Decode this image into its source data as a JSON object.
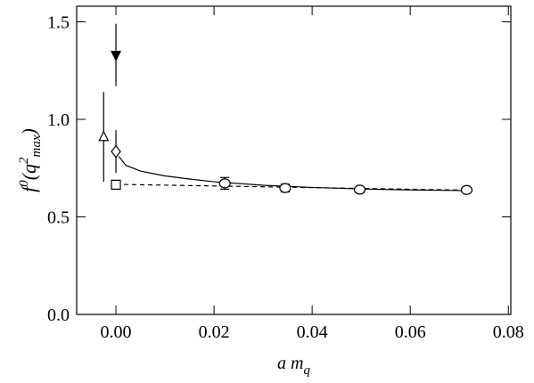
{
  "chart_data": {
    "type": "scatter",
    "xlabel_parts": [
      "a m",
      "q"
    ],
    "ylabel_parts": [
      "f",
      "0",
      "(q",
      "2",
      "max",
      ")"
    ],
    "xlim": [
      -0.008,
      0.0805
    ],
    "ylim": [
      0,
      1.58
    ],
    "xticks": [
      {
        "value": 0,
        "label": "0.00"
      },
      {
        "value": 0.02,
        "label": "0.02"
      },
      {
        "value": 0.04,
        "label": "0.04"
      },
      {
        "value": 0.06,
        "label": "0.06"
      },
      {
        "value": 0.08,
        "label": "0.08"
      }
    ],
    "yticks": [
      {
        "value": 0,
        "label": "0.0"
      },
      {
        "value": 0.5,
        "label": "0.5"
      },
      {
        "value": 1,
        "label": "1.0"
      },
      {
        "value": 1.5,
        "label": "1.5"
      }
    ],
    "color": "#000000",
    "series": [
      {
        "marker": "circle",
        "filled": false,
        "caps": true,
        "x": [
          0.0222,
          0.0345,
          0.0497,
          0.0715
        ],
        "values": [
          0.672,
          0.648,
          0.64,
          0.638
        ],
        "errors": [
          0.03,
          0.02,
          0.015,
          0.01
        ]
      },
      {
        "marker": "square",
        "filled": false,
        "caps": true,
        "x": [
          0
        ],
        "values": [
          0.665
        ],
        "errors": [
          0.01
        ]
      },
      {
        "marker": "diamond",
        "filled": false,
        "caps": false,
        "x": [
          0
        ],
        "values": [
          0.835
        ],
        "errors": [
          0.11
        ]
      },
      {
        "marker": "triangle-up",
        "filled": false,
        "caps": false,
        "x": [
          -0.0025
        ],
        "values": [
          0.91
        ],
        "errors": [
          0.23
        ]
      },
      {
        "marker": "triangle-down",
        "filled": true,
        "caps": false,
        "x": [
          0
        ],
        "values": [
          1.33
        ],
        "errors": [
          0.16
        ]
      }
    ],
    "lines": [
      {
        "style": "solid",
        "x": [
          0.0006,
          0.002,
          0.005,
          0.01,
          0.015,
          0.02,
          0.03,
          0.04,
          0.05,
          0.06,
          0.0715
        ],
        "values": [
          0.81,
          0.765,
          0.735,
          0.71,
          0.694,
          0.68,
          0.662,
          0.651,
          0.643,
          0.638,
          0.635
        ]
      },
      {
        "style": "dashed",
        "x": [
          0,
          0.0715
        ],
        "values": [
          0.667,
          0.637
        ]
      }
    ]
  }
}
